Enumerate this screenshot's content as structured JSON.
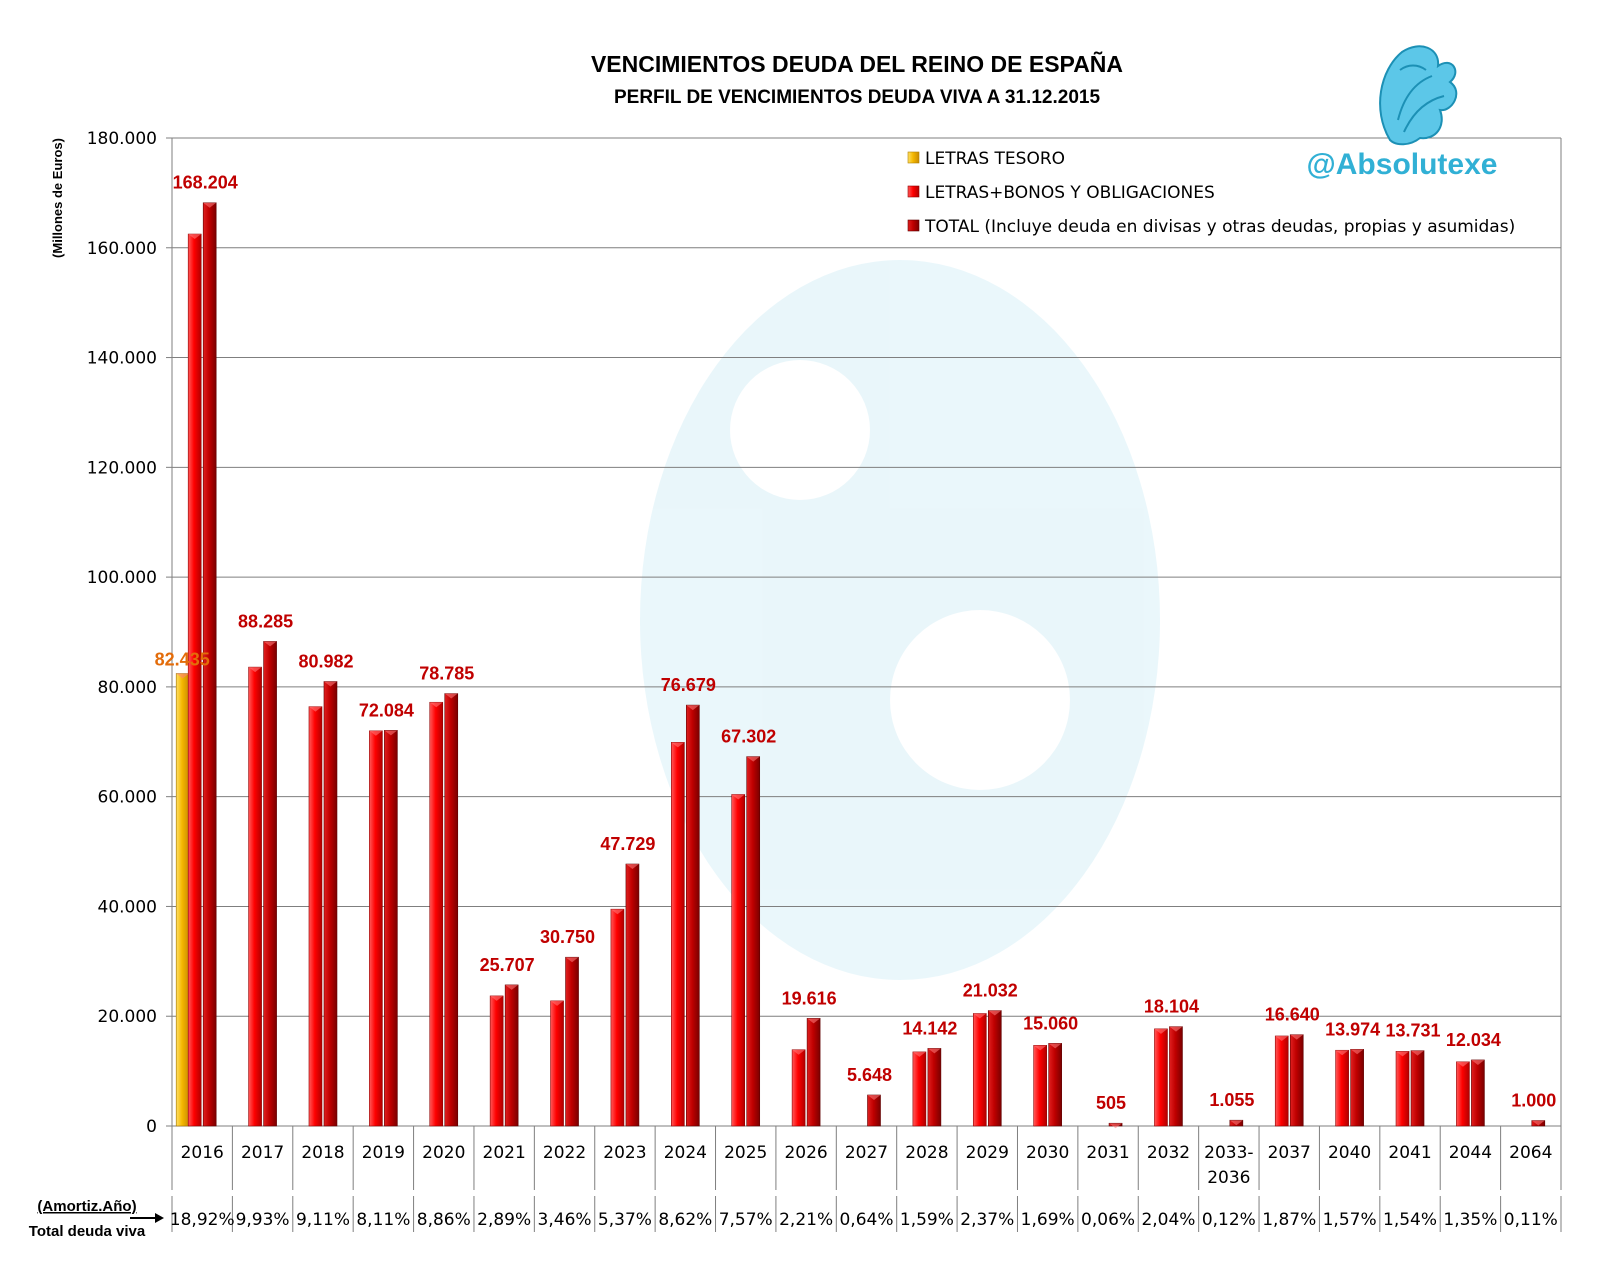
{
  "chart_data": {
    "type": "bar",
    "title": "VENCIMIENTOS DEUDA DEL REINO DE ESPAÑA",
    "subtitle": "PERFIL DE VENCIMIENTOS DEUDA VIVA A 31.12.2015",
    "ylabel": "(Millones de Euros)",
    "ylim": [
      0,
      180000
    ],
    "yticks": [
      0,
      20000,
      40000,
      60000,
      80000,
      100000,
      120000,
      140000,
      160000,
      180000
    ],
    "ytick_labels": [
      "0",
      "20.000",
      "40.000",
      "60.000",
      "80.000",
      "100.000",
      "120.000",
      "140.000",
      "160.000",
      "180.000"
    ],
    "grid": true,
    "legend_position": "top-right",
    "categories": [
      "2016",
      "2017",
      "2018",
      "2019",
      "2020",
      "2021",
      "2022",
      "2023",
      "2024",
      "2025",
      "2026",
      "2027",
      "2028",
      "2029",
      "2030",
      "2031",
      "2032",
      "2033-\n2036",
      "2037",
      "2040",
      "2041",
      "2044",
      "2064"
    ],
    "series": [
      {
        "name": "LETRAS TESORO",
        "color": "#f5b800",
        "values": [
          82435,
          0,
          0,
          0,
          0,
          0,
          0,
          0,
          0,
          0,
          0,
          0,
          0,
          0,
          0,
          0,
          0,
          0,
          0,
          0,
          0,
          0,
          0
        ]
      },
      {
        "name": "LETRAS+BONOS Y OBLIGACIONES",
        "color": "#ff0000",
        "values": [
          162500,
          83600,
          76400,
          72000,
          77200,
          23700,
          22800,
          39500,
          69900,
          60400,
          13900,
          0,
          13500,
          20500,
          14700,
          0,
          17700,
          0,
          16400,
          13800,
          13600,
          11700,
          0
        ]
      },
      {
        "name": "TOTAL (Incluye deuda en divisas y otras deudas, propias y asumidas)",
        "color": "#c00000",
        "values": [
          168204,
          88285,
          80982,
          72084,
          78785,
          25707,
          30750,
          47729,
          76679,
          67302,
          19616,
          5648,
          14142,
          21032,
          15060,
          505,
          18104,
          1055,
          16640,
          13974,
          13731,
          12034,
          1000
        ]
      }
    ],
    "data_labels": {
      "letras_2016": "82.435",
      "totals": [
        "168.204",
        "88.285",
        "80.982",
        "72.084",
        "78.785",
        "25.707",
        "30.750",
        "47.729",
        "76.679",
        "67.302",
        "19.616",
        "5.648",
        "14.142",
        "21.032",
        "15.060",
        "505",
        "18.104",
        "1.055",
        "16.640",
        "13.974",
        "13.731",
        "12.034",
        "1.000"
      ]
    },
    "pct_total_deuda_viva": [
      "18,92%",
      "9,93%",
      "9,11%",
      "8,11%",
      "8,86%",
      "2,89%",
      "3,46%",
      "5,37%",
      "8,62%",
      "7,57%",
      "2,21%",
      "0,64%",
      "1,59%",
      "2,37%",
      "1,69%",
      "0,06%",
      "2,04%",
      "0,12%",
      "1,87%",
      "1,57%",
      "1,54%",
      "1,35%",
      "0,11%"
    ],
    "row_labels": {
      "amortiz": "(Amortiz.Año)",
      "total": "Total deuda viva"
    }
  },
  "brand": {
    "handle": "@Absolutexe",
    "logo_icon": "griffin-logo-icon"
  }
}
